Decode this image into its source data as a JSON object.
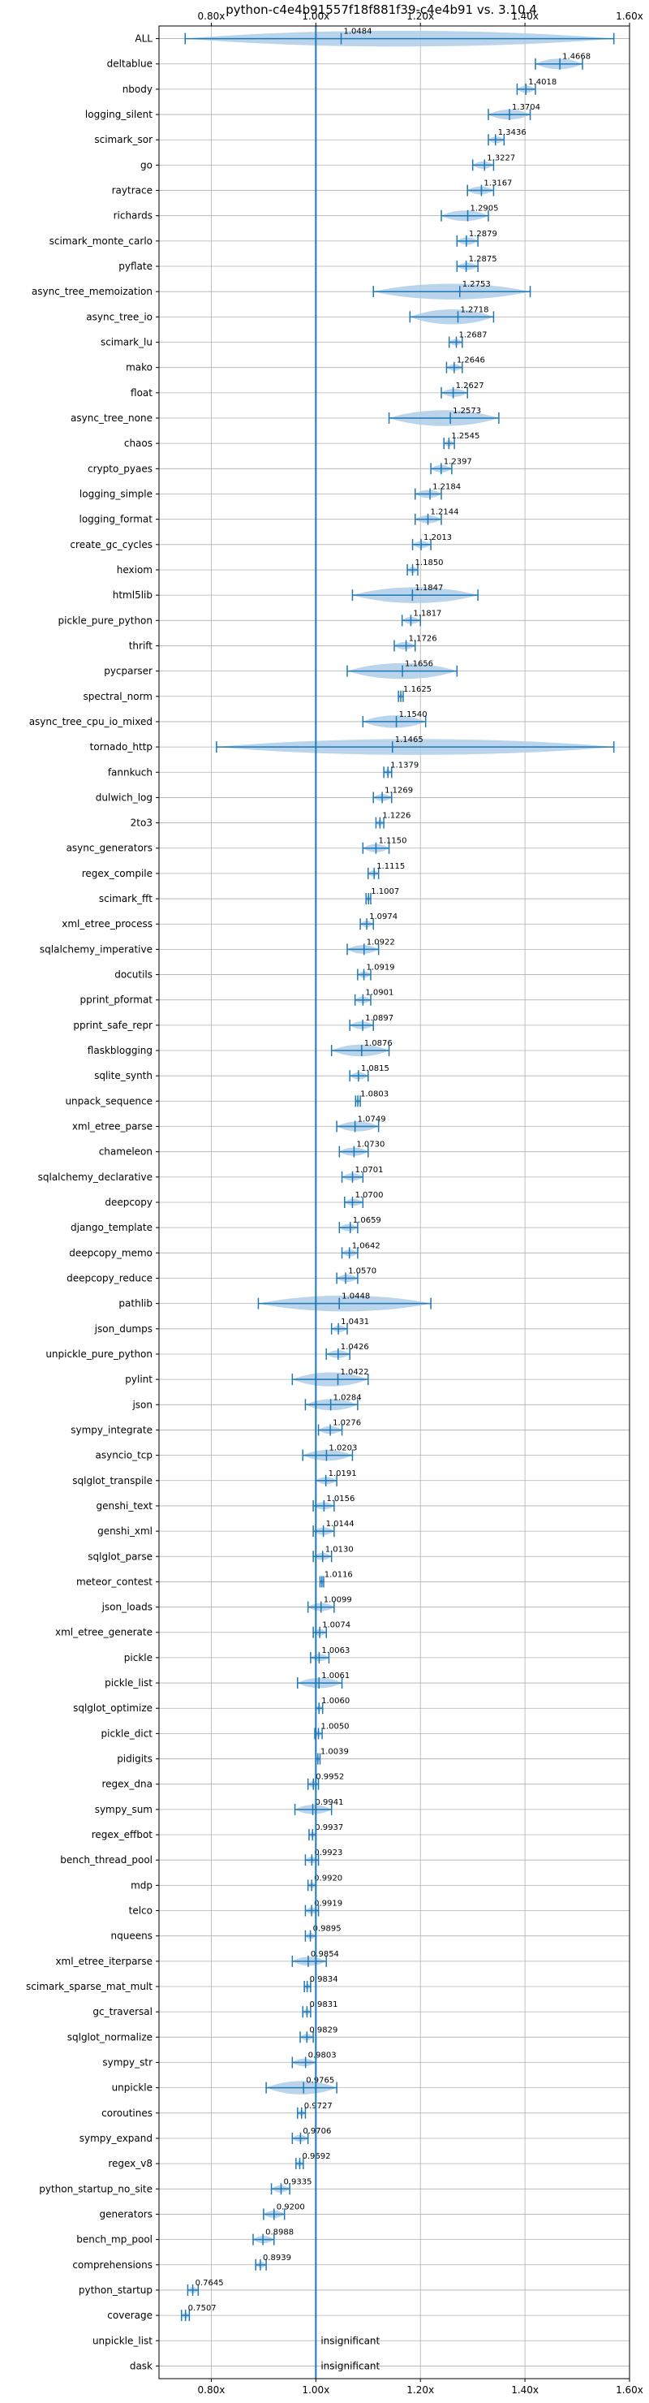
{
  "chart_data": {
    "type": "violin",
    "title": "python-c4e4b91557f18f881f39-c4e4b91 vs. 3.10.4",
    "xlim": [
      0.7,
      1.6
    ],
    "xticks": [
      "0.80x",
      "1.00x",
      "1.20x",
      "1.40x",
      "1.60x"
    ],
    "xtick_values": [
      0.8,
      1.0,
      1.2,
      1.4,
      1.6
    ],
    "reference_line": 1.0,
    "grid": true,
    "colors": {
      "violin": "#aecde8",
      "line": "#1f77b4",
      "grid": "#b0b0b0"
    },
    "benchmarks": [
      {
        "name": "ALL",
        "mean": 1.0484,
        "label": "1.0484",
        "min": 0.75,
        "max": 1.57
      },
      {
        "name": "deltablue",
        "mean": 1.4668,
        "label": "1.4668",
        "min": 1.42,
        "max": 1.51
      },
      {
        "name": "nbody",
        "mean": 1.4018,
        "label": "1.4018",
        "min": 1.385,
        "max": 1.42
      },
      {
        "name": "logging_silent",
        "mean": 1.3704,
        "label": "1.3704",
        "min": 1.33,
        "max": 1.41
      },
      {
        "name": "scimark_sor",
        "mean": 1.3436,
        "label": "1.3436",
        "min": 1.33,
        "max": 1.36
      },
      {
        "name": "go",
        "mean": 1.3227,
        "label": "1.3227",
        "min": 1.3,
        "max": 1.34
      },
      {
        "name": "raytrace",
        "mean": 1.3167,
        "label": "1.3167",
        "min": 1.29,
        "max": 1.34
      },
      {
        "name": "richards",
        "mean": 1.2905,
        "label": "1.2905",
        "min": 1.24,
        "max": 1.33
      },
      {
        "name": "scimark_monte_carlo",
        "mean": 1.2879,
        "label": "1.2879",
        "min": 1.27,
        "max": 1.31
      },
      {
        "name": "pyflate",
        "mean": 1.2875,
        "label": "1.2875",
        "min": 1.27,
        "max": 1.31
      },
      {
        "name": "async_tree_memoization",
        "mean": 1.2753,
        "label": "1.2753",
        "min": 1.11,
        "max": 1.41
      },
      {
        "name": "async_tree_io",
        "mean": 1.2718,
        "label": "1.2718",
        "min": 1.18,
        "max": 1.34
      },
      {
        "name": "scimark_lu",
        "mean": 1.2687,
        "label": "1.2687",
        "min": 1.255,
        "max": 1.28
      },
      {
        "name": "mako",
        "mean": 1.2646,
        "label": "1.2646",
        "min": 1.25,
        "max": 1.28
      },
      {
        "name": "float",
        "mean": 1.2627,
        "label": "1.2627",
        "min": 1.24,
        "max": 1.29
      },
      {
        "name": "async_tree_none",
        "mean": 1.2573,
        "label": "1.2573",
        "min": 1.14,
        "max": 1.35
      },
      {
        "name": "chaos",
        "mean": 1.2545,
        "label": "1.2545",
        "min": 1.245,
        "max": 1.265
      },
      {
        "name": "crypto_pyaes",
        "mean": 1.2397,
        "label": "1.2397",
        "min": 1.22,
        "max": 1.26
      },
      {
        "name": "logging_simple",
        "mean": 1.2184,
        "label": "1.2184",
        "min": 1.19,
        "max": 1.24
      },
      {
        "name": "logging_format",
        "mean": 1.2144,
        "label": "1.2144",
        "min": 1.19,
        "max": 1.24
      },
      {
        "name": "create_gc_cycles",
        "mean": 1.2013,
        "label": "1.2013",
        "min": 1.185,
        "max": 1.22
      },
      {
        "name": "hexiom",
        "mean": 1.185,
        "label": "1.1850",
        "min": 1.175,
        "max": 1.195
      },
      {
        "name": "html5lib",
        "mean": 1.1847,
        "label": "1.1847",
        "min": 1.07,
        "max": 1.31
      },
      {
        "name": "pickle_pure_python",
        "mean": 1.1817,
        "label": "1.1817",
        "min": 1.165,
        "max": 1.2
      },
      {
        "name": "thrift",
        "mean": 1.1726,
        "label": "1.1726",
        "min": 1.15,
        "max": 1.19
      },
      {
        "name": "pycparser",
        "mean": 1.1656,
        "label": "1.1656",
        "min": 1.06,
        "max": 1.27
      },
      {
        "name": "spectral_norm",
        "mean": 1.1625,
        "label": "1.1625",
        "min": 1.158,
        "max": 1.167
      },
      {
        "name": "async_tree_cpu_io_mixed",
        "mean": 1.154,
        "label": "1.1540",
        "min": 1.09,
        "max": 1.21
      },
      {
        "name": "tornado_http",
        "mean": 1.1465,
        "label": "1.1465",
        "min": 0.81,
        "max": 1.57
      },
      {
        "name": "fannkuch",
        "mean": 1.1379,
        "label": "1.1379",
        "min": 1.13,
        "max": 1.145
      },
      {
        "name": "dulwich_log",
        "mean": 1.1269,
        "label": "1.1269",
        "min": 1.11,
        "max": 1.145
      },
      {
        "name": "2to3",
        "mean": 1.1226,
        "label": "1.1226",
        "min": 1.115,
        "max": 1.13
      },
      {
        "name": "async_generators",
        "mean": 1.115,
        "label": "1.1150",
        "min": 1.09,
        "max": 1.14
      },
      {
        "name": "regex_compile",
        "mean": 1.1115,
        "label": "1.1115",
        "min": 1.1,
        "max": 1.12
      },
      {
        "name": "scimark_fft",
        "mean": 1.1007,
        "label": "1.1007",
        "min": 1.096,
        "max": 1.105
      },
      {
        "name": "xml_etree_process",
        "mean": 1.0974,
        "label": "1.0974",
        "min": 1.085,
        "max": 1.11
      },
      {
        "name": "sqlalchemy_imperative",
        "mean": 1.0922,
        "label": "1.0922",
        "min": 1.06,
        "max": 1.12
      },
      {
        "name": "docutils",
        "mean": 1.0919,
        "label": "1.0919",
        "min": 1.08,
        "max": 1.105
      },
      {
        "name": "pprint_pformat",
        "mean": 1.0901,
        "label": "1.0901",
        "min": 1.075,
        "max": 1.105
      },
      {
        "name": "pprint_safe_repr",
        "mean": 1.0897,
        "label": "1.0897",
        "min": 1.065,
        "max": 1.11
      },
      {
        "name": "flaskblogging",
        "mean": 1.0876,
        "label": "1.0876",
        "min": 1.03,
        "max": 1.14
      },
      {
        "name": "sqlite_synth",
        "mean": 1.0815,
        "label": "1.0815",
        "min": 1.065,
        "max": 1.1
      },
      {
        "name": "unpack_sequence",
        "mean": 1.0803,
        "label": "1.0803",
        "min": 1.076,
        "max": 1.085
      },
      {
        "name": "xml_etree_parse",
        "mean": 1.0749,
        "label": "1.0749",
        "min": 1.04,
        "max": 1.12
      },
      {
        "name": "chameleon",
        "mean": 1.073,
        "label": "1.0730",
        "min": 1.045,
        "max": 1.1
      },
      {
        "name": "sqlalchemy_declarative",
        "mean": 1.0701,
        "label": "1.0701",
        "min": 1.05,
        "max": 1.09
      },
      {
        "name": "deepcopy",
        "mean": 1.07,
        "label": "1.0700",
        "min": 1.055,
        "max": 1.09
      },
      {
        "name": "django_template",
        "mean": 1.0659,
        "label": "1.0659",
        "min": 1.045,
        "max": 1.08
      },
      {
        "name": "deepcopy_memo",
        "mean": 1.0642,
        "label": "1.0642",
        "min": 1.05,
        "max": 1.08
      },
      {
        "name": "deepcopy_reduce",
        "mean": 1.057,
        "label": "1.0570",
        "min": 1.04,
        "max": 1.08
      },
      {
        "name": "pathlib",
        "mean": 1.0448,
        "label": "1.0448",
        "min": 0.89,
        "max": 1.22
      },
      {
        "name": "json_dumps",
        "mean": 1.0431,
        "label": "1.0431",
        "min": 1.03,
        "max": 1.06
      },
      {
        "name": "unpickle_pure_python",
        "mean": 1.0426,
        "label": "1.0426",
        "min": 1.02,
        "max": 1.065
      },
      {
        "name": "pylint",
        "mean": 1.0422,
        "label": "1.0422",
        "min": 0.955,
        "max": 1.1
      },
      {
        "name": "json",
        "mean": 1.0284,
        "label": "1.0284",
        "min": 0.98,
        "max": 1.08
      },
      {
        "name": "sympy_integrate",
        "mean": 1.0276,
        "label": "1.0276",
        "min": 1.005,
        "max": 1.05
      },
      {
        "name": "asyncio_tcp",
        "mean": 1.0203,
        "label": "1.0203",
        "min": 0.975,
        "max": 1.07
      },
      {
        "name": "sqlglot_transpile",
        "mean": 1.0191,
        "label": "1.0191",
        "min": 1.0,
        "max": 1.04
      },
      {
        "name": "genshi_text",
        "mean": 1.0156,
        "label": "1.0156",
        "min": 0.995,
        "max": 1.035
      },
      {
        "name": "genshi_xml",
        "mean": 1.0144,
        "label": "1.0144",
        "min": 0.995,
        "max": 1.035
      },
      {
        "name": "sqlglot_parse",
        "mean": 1.013,
        "label": "1.0130",
        "min": 0.995,
        "max": 1.03
      },
      {
        "name": "meteor_contest",
        "mean": 1.0116,
        "label": "1.0116",
        "min": 1.008,
        "max": 1.015
      },
      {
        "name": "json_loads",
        "mean": 1.0099,
        "label": "1.0099",
        "min": 0.985,
        "max": 1.035
      },
      {
        "name": "xml_etree_generate",
        "mean": 1.0074,
        "label": "1.0074",
        "min": 0.995,
        "max": 1.02
      },
      {
        "name": "pickle",
        "mean": 1.0063,
        "label": "1.0063",
        "min": 0.99,
        "max": 1.025
      },
      {
        "name": "pickle_list",
        "mean": 1.0061,
        "label": "1.0061",
        "min": 0.965,
        "max": 1.05
      },
      {
        "name": "sqlglot_optimize",
        "mean": 1.006,
        "label": "1.0060",
        "min": 1.0,
        "max": 1.013
      },
      {
        "name": "pickle_dict",
        "mean": 1.005,
        "label": "1.0050",
        "min": 0.998,
        "max": 1.012
      },
      {
        "name": "pidigits",
        "mean": 1.0039,
        "label": "1.0039",
        "min": 1.0,
        "max": 1.008
      },
      {
        "name": "regex_dna",
        "mean": 0.9952,
        "label": "0.9952",
        "min": 0.985,
        "max": 1.005
      },
      {
        "name": "sympy_sum",
        "mean": 0.9941,
        "label": "0.9941",
        "min": 0.96,
        "max": 1.03
      },
      {
        "name": "regex_effbot",
        "mean": 0.9937,
        "label": "0.9937",
        "min": 0.987,
        "max": 1.0
      },
      {
        "name": "bench_thread_pool",
        "mean": 0.9923,
        "label": "0.9923",
        "min": 0.98,
        "max": 1.005
      },
      {
        "name": "mdp",
        "mean": 0.992,
        "label": "0.9920",
        "min": 0.985,
        "max": 1.0
      },
      {
        "name": "telco",
        "mean": 0.9919,
        "label": "0.9919",
        "min": 0.98,
        "max": 1.005
      },
      {
        "name": "nqueens",
        "mean": 0.9895,
        "label": "0.9895",
        "min": 0.98,
        "max": 1.0
      },
      {
        "name": "xml_etree_iterparse",
        "mean": 0.9854,
        "label": "0.9854",
        "min": 0.955,
        "max": 1.02
      },
      {
        "name": "scimark_sparse_mat_mult",
        "mean": 0.9834,
        "label": "0.9834",
        "min": 0.978,
        "max": 0.99
      },
      {
        "name": "gc_traversal",
        "mean": 0.9831,
        "label": "0.9831",
        "min": 0.975,
        "max": 0.99
      },
      {
        "name": "sqlglot_normalize",
        "mean": 0.9829,
        "label": "0.9829",
        "min": 0.97,
        "max": 0.995
      },
      {
        "name": "sympy_str",
        "mean": 0.9803,
        "label": "0.9803",
        "min": 0.955,
        "max": 1.0
      },
      {
        "name": "unpickle",
        "mean": 0.9765,
        "label": "0.9765",
        "min": 0.905,
        "max": 1.04
      },
      {
        "name": "coroutines",
        "mean": 0.9727,
        "label": "0.9727",
        "min": 0.965,
        "max": 0.98
      },
      {
        "name": "sympy_expand",
        "mean": 0.9706,
        "label": "0.9706",
        "min": 0.955,
        "max": 0.985
      },
      {
        "name": "regex_v8",
        "mean": 0.9692,
        "label": "0.9692",
        "min": 0.962,
        "max": 0.976
      },
      {
        "name": "python_startup_no_site",
        "mean": 0.9335,
        "label": "0.9335",
        "min": 0.915,
        "max": 0.95
      },
      {
        "name": "generators",
        "mean": 0.92,
        "label": "0.9200",
        "min": 0.9,
        "max": 0.94
      },
      {
        "name": "bench_mp_pool",
        "mean": 0.8988,
        "label": "0.8988",
        "min": 0.88,
        "max": 0.92
      },
      {
        "name": "comprehensions",
        "mean": 0.8939,
        "label": "0.8939",
        "min": 0.885,
        "max": 0.905
      },
      {
        "name": "python_startup",
        "mean": 0.7645,
        "label": "0.7645",
        "min": 0.755,
        "max": 0.775
      },
      {
        "name": "coverage",
        "mean": 0.7507,
        "label": "0.7507",
        "min": 0.743,
        "max": 0.758
      },
      {
        "name": "unpickle_list",
        "label": "insignificant"
      },
      {
        "name": "dask",
        "label": "insignificant"
      }
    ]
  }
}
